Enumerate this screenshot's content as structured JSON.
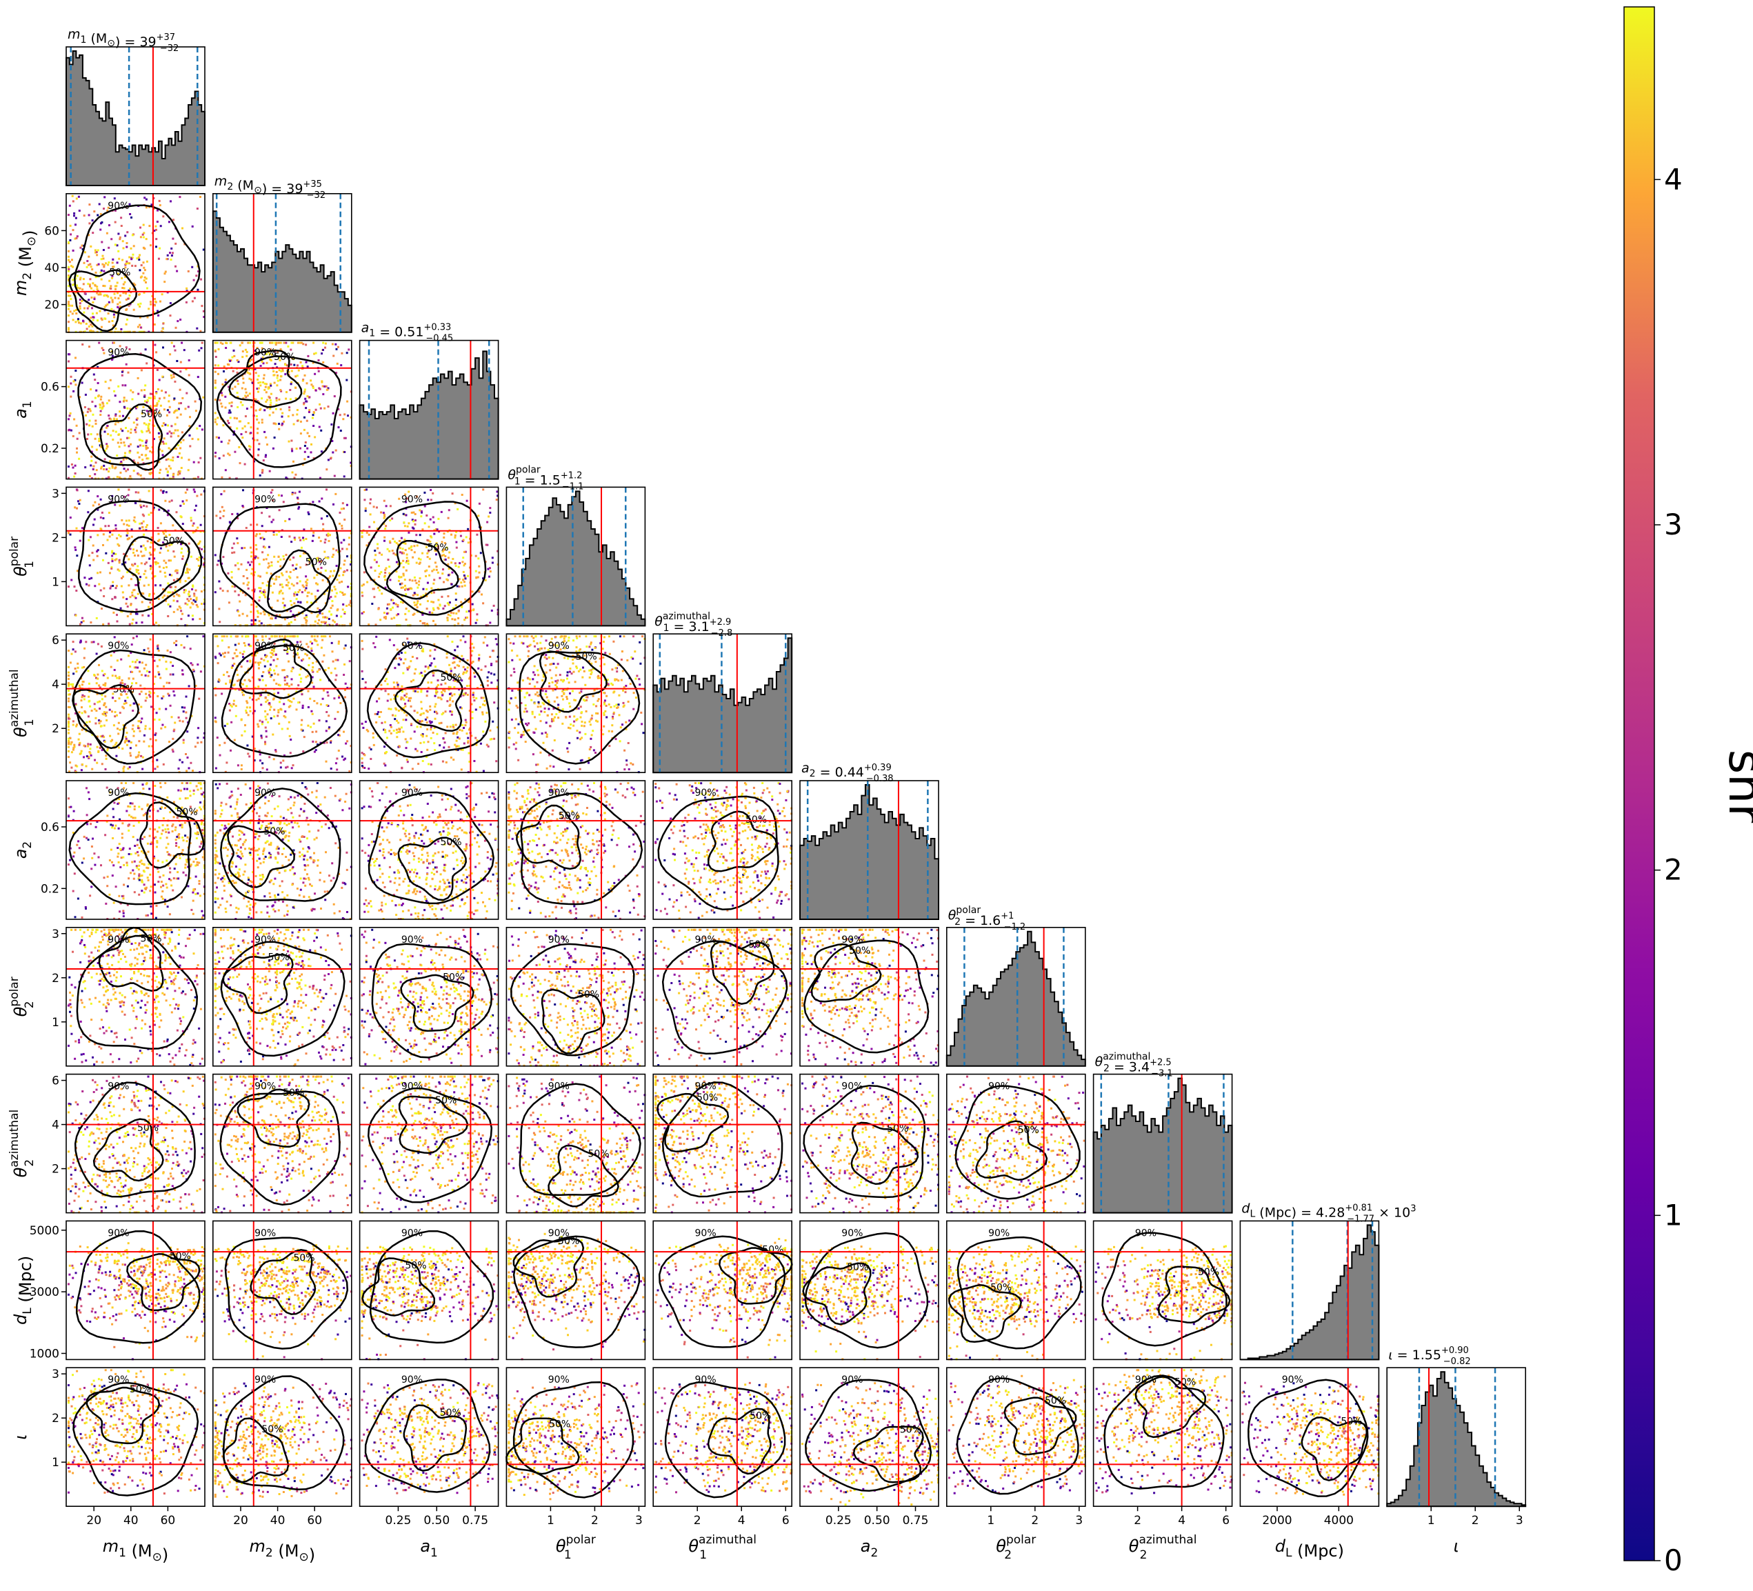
{
  "chart_data": {
    "type": "corner",
    "description_note": "",
    "parameters": [
      {
        "key": "m1",
        "title": "m_1 (M_⊙) = 39^{+37}_{-32}",
        "title_main": "m",
        "title_sub": "1",
        "title_rest": " (M",
        "title_sun": "⊙",
        "title_close": ") = 39",
        "err_plus": "+37",
        "err_minus": "−32",
        "axis_label_main": "m",
        "axis_label_sub": "1",
        "axis_label_unit": " (M",
        "axis_label_sun": "⊙",
        "axis_label_close": ")",
        "range": [
          5,
          80
        ],
        "ticks": [
          20,
          40,
          60
        ],
        "tick_labels": [
          "20",
          "40",
          "60"
        ],
        "truth": 52,
        "q_low": 7.5,
        "q_med": 39,
        "q_high": 76,
        "hist": [
          0.95,
          0.9,
          1.0,
          0.95,
          0.97,
          0.8,
          0.78,
          0.72,
          0.6,
          0.55,
          0.5,
          0.48,
          0.62,
          0.5,
          0.45,
          0.25,
          0.3,
          0.28,
          0.27,
          0.25,
          0.3,
          0.22,
          0.3,
          0.27,
          0.3,
          0.25,
          0.28,
          0.25,
          0.33,
          0.2,
          0.3,
          0.35,
          0.3,
          0.4,
          0.33,
          0.45,
          0.5,
          0.6,
          0.65,
          0.7,
          0.6,
          0.55
        ]
      },
      {
        "key": "m2",
        "title_main": "m",
        "title_sub": "2",
        "title_rest": " (M",
        "title_sun": "⊙",
        "title_close": ") = 39",
        "err_plus": "+35",
        "err_minus": "−32",
        "axis_label_main": "m",
        "axis_label_sub": "2",
        "axis_label_unit": " (M",
        "axis_label_sun": "⊙",
        "axis_label_close": ")",
        "range": [
          5,
          80
        ],
        "ticks": [
          20,
          40,
          60
        ],
        "tick_labels": [
          "20",
          "40",
          "60"
        ],
        "truth": 27,
        "q_low": 7,
        "q_med": 39,
        "q_high": 74,
        "hist": [
          0.9,
          0.85,
          0.78,
          0.75,
          0.72,
          0.68,
          0.65,
          0.6,
          0.62,
          0.55,
          0.5,
          0.5,
          0.48,
          0.52,
          0.45,
          0.5,
          0.48,
          0.52,
          0.6,
          0.55,
          0.6,
          0.65,
          0.62,
          0.58,
          0.55,
          0.6,
          0.55,
          0.6,
          0.52,
          0.48,
          0.45,
          0.5,
          0.4,
          0.42,
          0.45,
          0.35,
          0.3,
          0.3,
          0.25,
          0.2
        ]
      },
      {
        "key": "a1",
        "title_main": "a",
        "title_sub": "1",
        "title_rest": "",
        "title_sun": "",
        "title_close": " = 0.51",
        "err_plus": "+0.33",
        "err_minus": "−0.45",
        "axis_label_main": "a",
        "axis_label_sub": "1",
        "axis_label_unit": "",
        "axis_label_sun": "",
        "axis_label_close": "",
        "range": [
          0,
          0.9
        ],
        "ticks": [
          0.25,
          0.5,
          0.75
        ],
        "tick_labels": [
          "0.25",
          "0.50",
          "0.75"
        ],
        "y_ticks": [
          0.2,
          0.6
        ],
        "y_tick_labels": [
          "0.2",
          "0.6"
        ],
        "truth": 0.72,
        "q_low": 0.06,
        "q_med": 0.51,
        "q_high": 0.84,
        "hist": [
          0.55,
          0.5,
          0.48,
          0.52,
          0.45,
          0.5,
          0.48,
          0.5,
          0.55,
          0.45,
          0.5,
          0.52,
          0.48,
          0.55,
          0.5,
          0.55,
          0.6,
          0.65,
          0.7,
          0.75,
          0.72,
          0.78,
          0.75,
          0.8,
          0.7,
          0.75,
          0.78,
          0.72,
          0.7,
          0.82,
          0.9,
          0.75,
          0.95,
          0.8,
          0.7,
          0.6
        ]
      },
      {
        "key": "th1p",
        "title_main": "θ",
        "title_sub": "1",
        "title_sup": "polar",
        "title_rest": "",
        "title_sun": "",
        "title_close": " = 1.5",
        "err_plus": "+1.2",
        "err_minus": "−1.1",
        "axis_label_main": "θ",
        "axis_label_sub": "1",
        "axis_label_sup": "polar",
        "axis_label_unit": "",
        "axis_label_sun": "",
        "axis_label_close": "",
        "range": [
          0,
          3.14
        ],
        "ticks": [
          1,
          2,
          3
        ],
        "tick_labels": [
          "1",
          "2",
          "3"
        ],
        "truth": 2.15,
        "q_low": 0.38,
        "q_med": 1.5,
        "q_high": 2.7,
        "hist": [
          0.05,
          0.12,
          0.2,
          0.3,
          0.42,
          0.5,
          0.6,
          0.65,
          0.72,
          0.78,
          0.82,
          0.88,
          0.95,
          0.9,
          0.85,
          0.8,
          0.9,
          0.96,
          1.0,
          0.92,
          0.85,
          0.78,
          0.72,
          0.68,
          0.55,
          0.6,
          0.5,
          0.55,
          0.48,
          0.42,
          0.35,
          0.28,
          0.2,
          0.15,
          0.08,
          0.05
        ]
      },
      {
        "key": "th1a",
        "title_main": "θ",
        "title_sub": "1",
        "title_sup": "azimuthal",
        "title_rest": "",
        "title_sun": "",
        "title_close": " = 3.1",
        "err_plus": "+2.9",
        "err_minus": "−2.8",
        "axis_label_main": "θ",
        "axis_label_sub": "1",
        "axis_label_sup": "azimuthal",
        "axis_label_unit": "",
        "axis_label_sun": "",
        "axis_label_close": "",
        "range": [
          0,
          6.28
        ],
        "ticks": [
          2,
          4,
          6
        ],
        "tick_labels": [
          "2",
          "4",
          "6"
        ],
        "truth": 3.8,
        "q_low": 0.3,
        "q_med": 3.1,
        "q_high": 6.0,
        "hist": [
          0.65,
          0.6,
          0.7,
          0.62,
          0.68,
          0.72,
          0.65,
          0.7,
          0.6,
          0.68,
          0.72,
          0.66,
          0.62,
          0.7,
          0.68,
          0.72,
          0.6,
          0.65,
          0.58,
          0.55,
          0.62,
          0.5,
          0.52,
          0.56,
          0.5,
          0.55,
          0.6,
          0.62,
          0.58,
          0.65,
          0.7,
          0.62,
          0.75,
          0.8,
          0.85,
          1.0
        ]
      },
      {
        "key": "a2",
        "title_main": "a",
        "title_sub": "2",
        "title_rest": "",
        "title_sun": "",
        "title_close": " = 0.44",
        "err_plus": "+0.39",
        "err_minus": "−0.38",
        "axis_label_main": "a",
        "axis_label_sub": "2",
        "axis_label_unit": "",
        "axis_label_sun": "",
        "axis_label_close": "",
        "range": [
          0,
          0.9
        ],
        "ticks": [
          0.25,
          0.5,
          0.75
        ],
        "tick_labels": [
          "0.25",
          "0.50",
          "0.75"
        ],
        "y_ticks": [
          0.2,
          0.6
        ],
        "y_tick_labels": [
          "0.2",
          "0.6"
        ],
        "truth": 0.64,
        "q_low": 0.05,
        "q_med": 0.44,
        "q_high": 0.83,
        "hist": [
          0.55,
          0.6,
          0.58,
          0.62,
          0.55,
          0.6,
          0.65,
          0.62,
          0.7,
          0.65,
          0.72,
          0.68,
          0.75,
          0.8,
          0.85,
          0.78,
          0.92,
          1.0,
          0.85,
          0.9,
          0.82,
          0.78,
          0.72,
          0.8,
          0.75,
          0.7,
          0.78,
          0.72,
          0.7,
          0.65,
          0.6,
          0.68,
          0.62,
          0.55,
          0.6,
          0.45
        ]
      },
      {
        "key": "th2p",
        "title_main": "θ",
        "title_sub": "2",
        "title_sup": "polar",
        "title_rest": "",
        "title_sun": "",
        "title_close": " = 1.6",
        "err_plus": "+1",
        "err_minus": "−1.2",
        "axis_label_main": "θ",
        "axis_label_sub": "2",
        "axis_label_sup": "polar",
        "axis_label_unit": "",
        "axis_label_sun": "",
        "axis_label_close": "",
        "range": [
          0,
          3.14
        ],
        "ticks": [
          1,
          2,
          3
        ],
        "tick_labels": [
          "1",
          "2",
          "3"
        ],
        "truth": 2.2,
        "q_low": 0.4,
        "q_med": 1.6,
        "q_high": 2.65,
        "hist": [
          0.08,
          0.15,
          0.25,
          0.35,
          0.45,
          0.52,
          0.55,
          0.6,
          0.58,
          0.55,
          0.5,
          0.55,
          0.6,
          0.65,
          0.7,
          0.72,
          0.75,
          0.8,
          0.85,
          0.88,
          0.9,
          1.0,
          0.92,
          0.85,
          0.8,
          0.72,
          0.65,
          0.55,
          0.48,
          0.4,
          0.32,
          0.25,
          0.18,
          0.12,
          0.08,
          0.05
        ]
      },
      {
        "key": "th2a",
        "title_main": "θ",
        "title_sub": "2",
        "title_sup": "azimuthal",
        "title_rest": "",
        "title_sun": "",
        "title_close": " = 3.4",
        "err_plus": "+2.5",
        "err_minus": "−3.1",
        "axis_label_main": "θ",
        "axis_label_sub": "2",
        "axis_label_sup": "azimuthal",
        "axis_label_unit": "",
        "axis_label_sun": "",
        "axis_label_close": "",
        "range": [
          0,
          6.28
        ],
        "ticks": [
          2,
          4,
          6
        ],
        "tick_labels": [
          "2",
          "4",
          "6"
        ],
        "truth": 4.0,
        "q_low": 0.35,
        "q_med": 3.4,
        "q_high": 5.9,
        "hist": [
          0.6,
          0.55,
          0.65,
          0.62,
          0.7,
          0.78,
          0.65,
          0.7,
          0.75,
          0.8,
          0.72,
          0.68,
          0.75,
          0.65,
          0.6,
          0.7,
          0.65,
          0.6,
          0.72,
          0.78,
          0.85,
          0.9,
          1.0,
          0.95,
          0.82,
          0.75,
          0.8,
          0.85,
          0.78,
          0.72,
          0.8,
          0.75,
          0.65,
          0.72,
          0.6,
          0.65
        ]
      },
      {
        "key": "dL",
        "title_main": "d",
        "title_sub": "L",
        "title_rest": " (Mpc)",
        "title_sun": "",
        "title_close": " = 4.28",
        "err_plus": "+0.81",
        "err_minus": "−1.77",
        "title_tail": " × 10",
        "title_tail_sup": "3",
        "axis_label_main": "d",
        "axis_label_sub": "L",
        "axis_label_unit": " (Mpc)",
        "axis_label_sun": "",
        "axis_label_close": "",
        "range": [
          800,
          5300
        ],
        "ticks": [
          2000,
          4000
        ],
        "tick_labels": [
          "2000",
          "4000"
        ],
        "y_ticks": [
          1000,
          3000,
          5000
        ],
        "y_tick_labels": [
          "1000",
          "3000",
          "5000"
        ],
        "truth": 4300,
        "q_low": 2500,
        "q_med": 4280,
        "q_high": 5090,
        "hist": [
          0.0,
          0.0,
          0.01,
          0.01,
          0.01,
          0.02,
          0.02,
          0.03,
          0.03,
          0.04,
          0.05,
          0.06,
          0.08,
          0.1,
          0.12,
          0.15,
          0.18,
          0.2,
          0.22,
          0.25,
          0.28,
          0.3,
          0.35,
          0.42,
          0.5,
          0.55,
          0.62,
          0.7,
          0.68,
          0.8,
          0.85,
          0.78,
          0.9,
          1.0,
          0.95,
          0.85
        ]
      },
      {
        "key": "iota",
        "title_main": "ι",
        "title_sub": "",
        "title_rest": "",
        "title_sun": "",
        "title_close": " = 1.55",
        "err_plus": "+0.90",
        "err_minus": "−0.82",
        "axis_label_main": "ι",
        "axis_label_sub": "",
        "axis_label_unit": "",
        "axis_label_sun": "",
        "axis_label_close": "",
        "range": [
          0,
          3.14
        ],
        "ticks": [
          1,
          2,
          3
        ],
        "tick_labels": [
          "1",
          "2",
          "3"
        ],
        "truth": 0.95,
        "q_low": 0.73,
        "q_med": 1.55,
        "q_high": 2.45,
        "hist": [
          0.02,
          0.03,
          0.05,
          0.08,
          0.12,
          0.2,
          0.3,
          0.45,
          0.62,
          0.75,
          0.85,
          0.9,
          0.82,
          0.95,
          1.0,
          0.92,
          0.88,
          0.8,
          0.75,
          0.7,
          0.62,
          0.55,
          0.45,
          0.38,
          0.3,
          0.25,
          0.18,
          0.14,
          0.1,
          0.08,
          0.06,
          0.04,
          0.03,
          0.02,
          0.02,
          0.01
        ]
      }
    ],
    "contour_labels": [
      "50%",
      "90%"
    ],
    "colorbar": {
      "label": "snr",
      "range": [
        0,
        4.5
      ],
      "ticks": [
        0,
        1,
        2,
        3,
        4
      ],
      "tick_labels": [
        "0",
        "1",
        "2",
        "3",
        "4"
      ],
      "colormap": "plasma"
    },
    "colors": {
      "hist_fill": "#808080",
      "hist_edge": "#000000",
      "truth_line": "#ff0000",
      "quantile_line": "#1f77b4",
      "contour": "#000000"
    }
  }
}
